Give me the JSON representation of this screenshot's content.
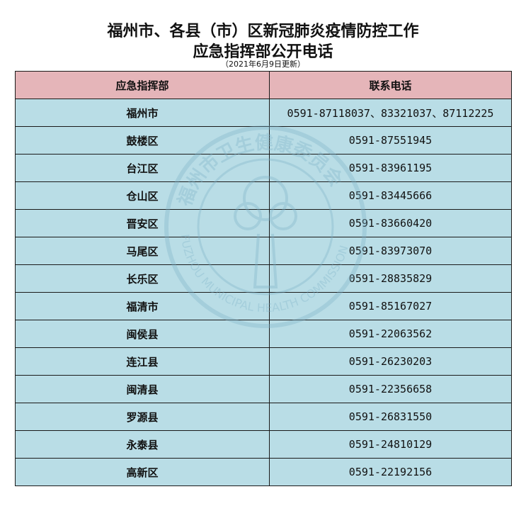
{
  "title_line1": "福州市、各县（市）区新冠肺炎疫情防控工作",
  "title_line2": "应急指挥部公开电话",
  "update_note": "（2021年6月9日更新）",
  "table": {
    "headers": [
      "应急指挥部",
      "联系电话"
    ],
    "rows": [
      {
        "name": "福州市",
        "phone": "0591-87118037、83321037、87112225"
      },
      {
        "name": "鼓楼区",
        "phone": "0591-87551945"
      },
      {
        "name": "台江区",
        "phone": "0591-83961195"
      },
      {
        "name": "仓山区",
        "phone": "0591-83445666"
      },
      {
        "name": "晋安区",
        "phone": "0591-83660420"
      },
      {
        "name": "马尾区",
        "phone": "0591-83973070"
      },
      {
        "name": "长乐区",
        "phone": "0591-28835829"
      },
      {
        "name": "福清市",
        "phone": "0591-85167027"
      },
      {
        "name": "闽侯县",
        "phone": "0591-22063562"
      },
      {
        "name": "连江县",
        "phone": "0591-26230203"
      },
      {
        "name": "闽清县",
        "phone": "0591-22356658"
      },
      {
        "name": "罗源县",
        "phone": "0591-26831550"
      },
      {
        "name": "永泰县",
        "phone": "0591-24810129"
      },
      {
        "name": "高新区",
        "phone": "0591-22192156"
      }
    ]
  },
  "watermark": {
    "text_cn": "福州市卫生健康委员会",
    "text_en": "FUZHOU MUNICIPAL HEALTH COMMISSION",
    "color": "#7fb3c9"
  },
  "colors": {
    "header_bg": "#e5b5b9",
    "row_bg": "#b9dde6"
  }
}
